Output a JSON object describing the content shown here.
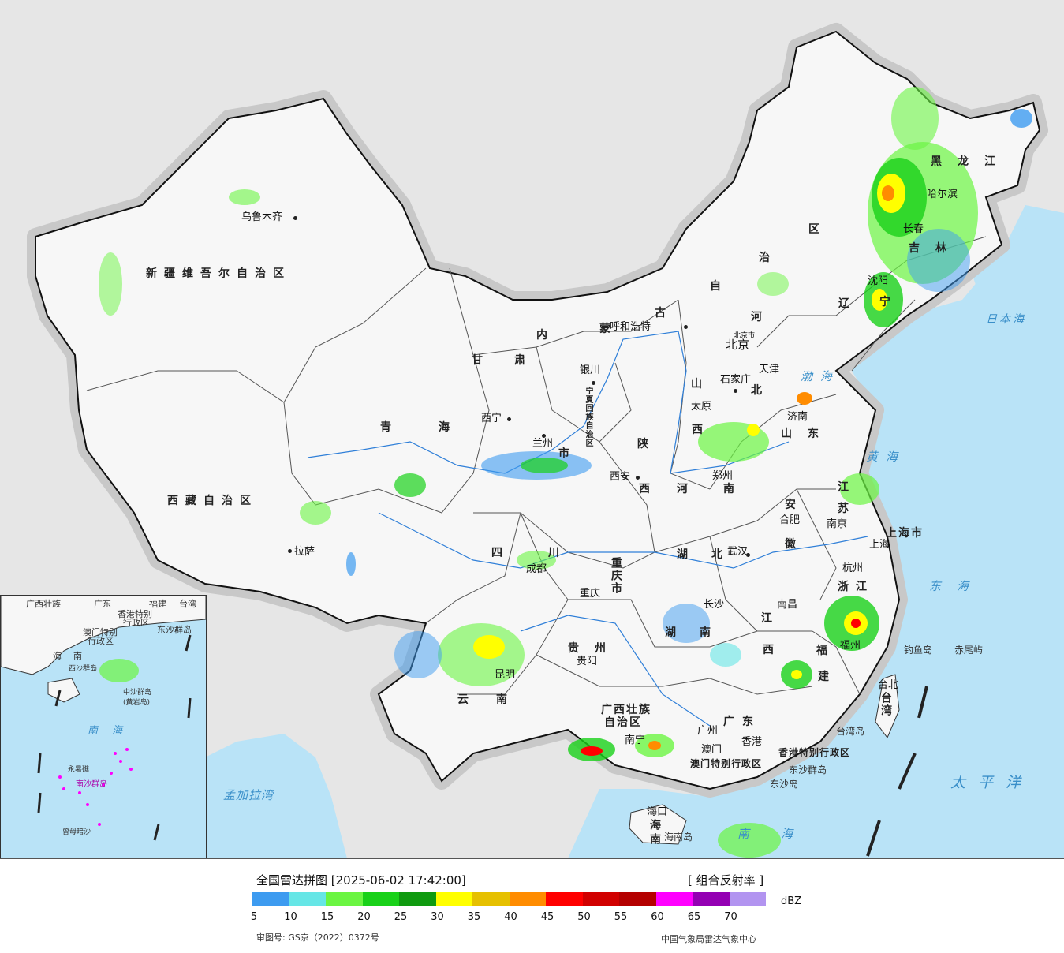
{
  "legend": {
    "title": "全国雷达拼图 [2025-06-02 17:42:00]",
    "product": "[ 组合反射率 ]",
    "unit": "dBZ",
    "approval": "审图号: GS京（2022）0372号",
    "publisher": "中国气象局雷达气象中心",
    "ticks": [
      "5",
      "10",
      "15",
      "20",
      "25",
      "30",
      "35",
      "40",
      "45",
      "50",
      "55",
      "60",
      "65",
      "70"
    ],
    "colors": [
      "#3d9bf0",
      "#66e6e6",
      "#6bf542",
      "#19d119",
      "#0f9a0f",
      "#ffff00",
      "#e6c000",
      "#ff8c00",
      "#ff0000",
      "#d10000",
      "#b40000",
      "#ff00ff",
      "#9400b3",
      "#b294f0"
    ]
  },
  "regions": {
    "xinjiang": "新疆维吾尔自治区",
    "xizang": "西藏自治区",
    "qinghai": "青海",
    "gansu": "甘肃",
    "neimenggu_1": "内",
    "neimenggu_2": "蒙",
    "neimenggu_3": "古",
    "neimenggu_4": "自",
    "neimenggu_5": "治",
    "neimenggu_6": "区",
    "ningxia": "宁夏回族自治区",
    "shaanxi_1": "陕",
    "shaanxi_2": "西",
    "shanxi_1": "山",
    "shanxi_2": "西",
    "hebei_1": "河",
    "hebei_2": "北",
    "shandong": "山东",
    "henan": "河南",
    "heilongjiang": "黑龙江",
    "jilin": "吉林",
    "liaoning_1": "辽",
    "liaoning_2": "宁",
    "jiangsu_1": "江",
    "jiangsu_2": "苏",
    "anhui_1": "安",
    "anhui_2": "徽",
    "hubei": "湖北",
    "sichuan_1": "四",
    "sichuan_2": "川",
    "chongqing": "重庆市",
    "hunan": "湖南",
    "jiangxi_1": "江",
    "jiangxi_2": "西",
    "zhejiang": "浙江",
    "fujian_1": "福",
    "fujian_2": "建",
    "guizhou": "贵州",
    "yunnan": "云南",
    "guangxi_1": "广西壮族",
    "guangxi_2": "自治区",
    "guangdong": "广东",
    "hainan": "海南",
    "taiwan": "台湾",
    "shanghai": "上海市",
    "tianjin": "天津",
    "hongkong": "香港特别行政区",
    "macao": "澳门特别行政区",
    "lanzhou_city": "市"
  },
  "cities": {
    "urumqi": "乌鲁木齐",
    "lhasa": "拉萨",
    "xining": "西宁",
    "lanzhou": "兰州",
    "yinchuan": "银川",
    "hohhot": "呼和浩特",
    "beijing": "北京",
    "beijing_small": "北京市",
    "tianjin": "天津",
    "shijiazhuang": "石家庄",
    "taiyuan": "太原",
    "jinan": "济南",
    "xian": "西安",
    "zhengzhou": "郑州",
    "hefei": "合肥",
    "nanjing": "南京",
    "shanghai": "上海",
    "hangzhou": "杭州",
    "wuhan": "武汉",
    "chengdu": "成都",
    "chongqing": "重庆",
    "changsha": "长沙",
    "nanchang": "南昌",
    "fuzhou": "福州",
    "guiyang": "贵阳",
    "kunming": "昆明",
    "nanning": "南宁",
    "guangzhou": "广州",
    "macao": "澳门",
    "hongkong": "香港",
    "haikou": "海口",
    "taipei": "台北",
    "shenyang": "沈阳",
    "changchun": "长春",
    "harbin": "哈尔滨"
  },
  "seas": {
    "japan_sea": "日本海",
    "bohai": "渤海",
    "yellow_sea": "黄海",
    "east_sea": "东海",
    "pacific": "太平洋",
    "south_sea": "南海",
    "bengal": "孟加拉湾"
  },
  "islands": {
    "diaoyu": "钓鱼岛",
    "chiwei": "赤尾屿",
    "taiwan_island": "台湾岛",
    "dongsha_islands": "东沙群岛",
    "dongsha_island": "东沙岛",
    "hainan_island": "海南岛"
  },
  "inset": {
    "guangxi": "广西壮族",
    "guangdong": "广东",
    "fujian": "福建",
    "taiwan": "台湾",
    "hongkong": "香港特别",
    "hongkong_2": "行政区",
    "macao": "澳门特别",
    "macao_2": "行政区",
    "dongsha": "东沙群岛",
    "hainan_1": "海",
    "hainan_2": "南",
    "xisha": "西沙群岛",
    "zhongsha": "中沙群岛",
    "huangyan": "(黄岩岛)",
    "nansha": "南沙群岛",
    "yongshu": "永暑礁",
    "zengmu": "曾母暗沙",
    "south_sea": "南海"
  }
}
